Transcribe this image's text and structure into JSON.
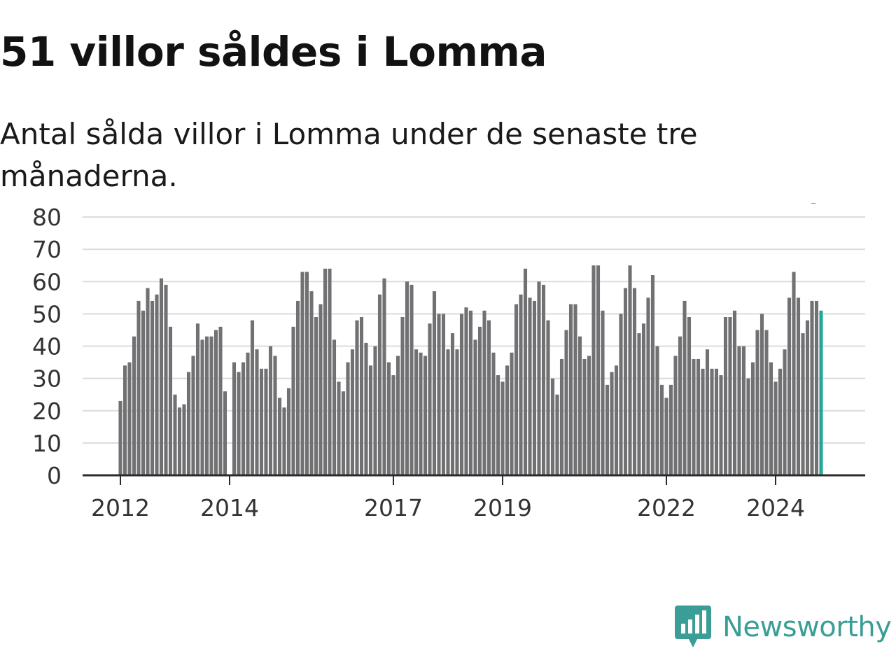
{
  "title": "51 villor såldes i Lomma",
  "subtitle": "Antal sålda villor i Lomma under de senaste tre månaderna.",
  "brand": {
    "name": "Newsworthy",
    "color": "#3a9e96",
    "icon": "bar-chart-speech-bubble-icon"
  },
  "chart_data": {
    "type": "bar",
    "ylim": [
      0,
      80
    ],
    "yticks": [
      0,
      10,
      20,
      30,
      40,
      50,
      60,
      70,
      80
    ],
    "xticks": [
      {
        "label": "2012",
        "index": 0
      },
      {
        "label": "2014",
        "index": 24
      },
      {
        "label": "2017",
        "index": 60
      },
      {
        "label": "2019",
        "index": 84
      },
      {
        "label": "2022",
        "index": 120
      },
      {
        "label": "2024",
        "index": 144
      }
    ],
    "values": [
      23,
      34,
      35,
      43,
      54,
      51,
      58,
      54,
      56,
      61,
      59,
      46,
      25,
      21,
      22,
      32,
      37,
      47,
      42,
      43,
      43,
      45,
      46,
      26,
      null,
      35,
      32,
      35,
      38,
      48,
      39,
      33,
      33,
      40,
      37,
      24,
      21,
      27,
      46,
      54,
      63,
      63,
      57,
      49,
      53,
      64,
      64,
      42,
      29,
      26,
      35,
      39,
      48,
      49,
      41,
      34,
      40,
      56,
      61,
      35,
      31,
      37,
      49,
      60,
      59,
      39,
      38,
      37,
      47,
      57,
      50,
      50,
      39,
      44,
      39,
      50,
      52,
      51,
      42,
      46,
      51,
      48,
      38,
      31,
      29,
      34,
      38,
      53,
      56,
      64,
      55,
      54,
      60,
      59,
      48,
      30,
      25,
      36,
      45,
      53,
      53,
      43,
      36,
      37,
      65,
      65,
      51,
      28,
      32,
      34,
      50,
      58,
      65,
      58,
      44,
      47,
      55,
      62,
      40,
      28,
      24,
      28,
      37,
      43,
      54,
      49,
      36,
      36,
      33,
      39,
      33,
      33,
      31,
      49,
      49,
      51,
      40,
      40,
      30,
      35,
      45,
      50,
      45,
      35,
      29,
      33,
      39,
      55,
      63,
      55,
      44,
      48,
      54,
      54,
      51
    ],
    "highlight_color": "#26a69a",
    "bar_color": "#717073",
    "grid": true,
    "annotation": {
      "label": "51",
      "index": 155
    }
  }
}
